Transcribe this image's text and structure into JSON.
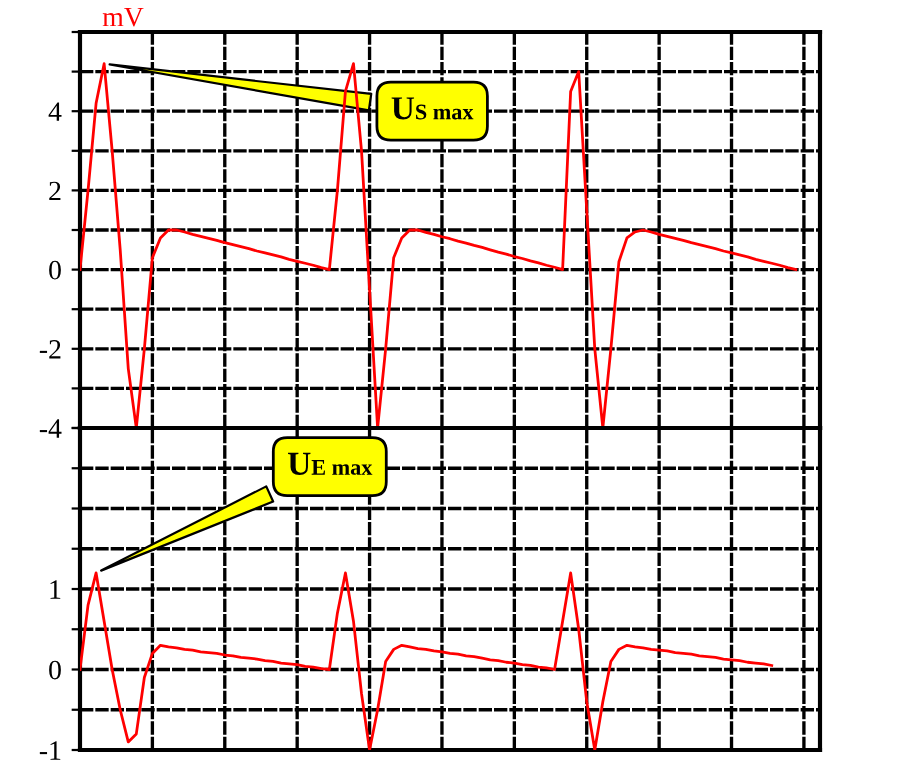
{
  "chart_data": [
    {
      "type": "line",
      "ylabel": "mV",
      "grid": true,
      "marker": "none",
      "line_style": "solid",
      "tick_labels": "y",
      "categories": [
        null,
        null,
        null,
        null,
        null,
        null,
        null,
        null,
        null,
        null,
        null,
        null,
        null,
        null,
        null,
        null,
        null,
        null,
        null,
        null,
        null,
        null,
        null,
        null,
        null,
        null,
        null,
        null,
        null,
        null,
        null,
        null,
        null,
        null,
        null,
        null,
        null,
        null,
        null,
        null,
        null,
        null,
        null,
        null,
        null,
        null,
        null,
        null,
        null,
        null,
        null,
        null,
        null,
        null,
        null,
        null,
        null,
        null,
        null,
        null,
        null,
        null,
        null,
        null,
        null,
        null,
        null,
        null,
        null,
        null,
        null,
        null,
        null,
        null,
        null,
        null,
        null,
        null,
        null,
        null,
        null,
        null,
        null,
        null,
        null,
        null,
        null,
        null,
        null,
        null,
        null,
        null,
        null
      ],
      "ylim": [
        -4,
        6
      ],
      "yticks": [
        -4,
        {
          "value": -3,
          "label": null
        },
        -2,
        {
          "value": -1,
          "label": null
        },
        0,
        {
          "value": 1,
          "label": null
        },
        2,
        {
          "value": 3,
          "label": null
        },
        4,
        {
          "value": 5,
          "label": null
        },
        {
          "value": 6,
          "label": null
        }
      ],
      "annotations": [
        "U$_{S max}$"
      ],
      "series": [
        {
          "color": "#ff0000",
          "values": [
            0,
            2.0,
            4.2,
            5.2,
            3.0,
            0.5,
            -2.5,
            -4.0,
            -2.0,
            0.3,
            0.8,
            1.0,
            1.0,
            0.95,
            0.89,
            0.84,
            0.79,
            0.74,
            0.68,
            0.63,
            0.58,
            0.53,
            0.47,
            0.42,
            0.37,
            0.32,
            0.26,
            0.21,
            0.16,
            0.11,
            0.05,
            0,
            2.0,
            4.5,
            5.2,
            3.0,
            -0.5,
            -4.0,
            -2.0,
            0.3,
            0.8,
            1.0,
            1.0,
            0.94,
            0.89,
            0.83,
            0.78,
            0.72,
            0.67,
            0.61,
            0.56,
            0.5,
            0.44,
            0.39,
            0.33,
            0.28,
            0.22,
            0.17,
            0.11,
            0.06,
            0,
            4.5,
            5.0,
            1.5,
            -2.0,
            -4.0,
            -2.0,
            0.2,
            0.8,
            0.95,
            1.0,
            0.95,
            0.89,
            0.84,
            0.79,
            0.74,
            0.68,
            0.63,
            0.58,
            0.53,
            0.47,
            0.42,
            0.37,
            0.32,
            0.26,
            0.21,
            0.16,
            0.11,
            0.05,
            0,
            null,
            null,
            null
          ]
        }
      ]
    },
    {
      "type": "line",
      "grid": true,
      "marker": "none",
      "line_style": "solid",
      "tick_labels": "y",
      "categories": [
        null,
        null,
        null,
        null,
        null,
        null,
        null,
        null,
        null,
        null,
        null,
        null,
        null,
        null,
        null,
        null,
        null,
        null,
        null,
        null,
        null,
        null,
        null,
        null,
        null,
        null,
        null,
        null,
        null,
        null,
        null,
        null,
        null,
        null,
        null,
        null,
        null,
        null,
        null,
        null,
        null,
        null,
        null,
        null,
        null,
        null,
        null,
        null,
        null,
        null,
        null,
        null,
        null,
        null,
        null,
        null,
        null,
        null,
        null,
        null,
        null,
        null,
        null,
        null,
        null,
        null,
        null,
        null,
        null,
        null,
        null,
        null,
        null,
        null,
        null,
        null,
        null,
        null,
        null,
        null,
        null,
        null,
        null,
        null,
        null,
        null,
        null,
        null,
        null,
        null,
        null,
        null,
        null
      ],
      "ylim": [
        -1,
        3
      ],
      "yticks": [
        -1,
        {
          "value": -0.5,
          "label": null
        },
        0,
        {
          "value": 0.5,
          "label": null
        },
        1,
        {
          "value": 1.5,
          "label": null
        },
        {
          "value": 2,
          "label": null
        },
        {
          "value": 2.5,
          "label": null
        },
        {
          "value": 3,
          "label": null
        }
      ],
      "annotations": [
        "U$_{E max}$"
      ],
      "series": [
        {
          "color": "#ff0000",
          "values": [
            0,
            0.8,
            1.2,
            0.6,
            0,
            -0.5,
            -0.9,
            -0.8,
            -0.1,
            0.2,
            0.3,
            0.28,
            0.27,
            0.25,
            0.24,
            0.22,
            0.21,
            0.2,
            0.18,
            0.17,
            0.15,
            0.14,
            0.13,
            0.11,
            0.1,
            0.08,
            0.07,
            0.06,
            0.04,
            0.03,
            0.01,
            0,
            0.7,
            1.2,
            0.6,
            -0.3,
            -1.0,
            -0.5,
            0.1,
            0.25,
            0.3,
            0.28,
            0.26,
            0.25,
            0.23,
            0.22,
            0.2,
            0.19,
            0.17,
            0.16,
            0.14,
            0.12,
            0.11,
            0.09,
            0.08,
            0.06,
            0.05,
            0.03,
            0.02,
            0,
            0.6,
            1.2,
            0.5,
            -0.4,
            -1.0,
            -0.4,
            0.1,
            0.25,
            0.3,
            0.28,
            0.27,
            0.25,
            0.24,
            0.23,
            0.21,
            0.2,
            0.19,
            0.17,
            0.16,
            0.15,
            0.13,
            0.12,
            0.11,
            0.09,
            0.08,
            0.07,
            0.05,
            null,
            null,
            null,
            null,
            null,
            null
          ]
        }
      ]
    }
  ]
}
